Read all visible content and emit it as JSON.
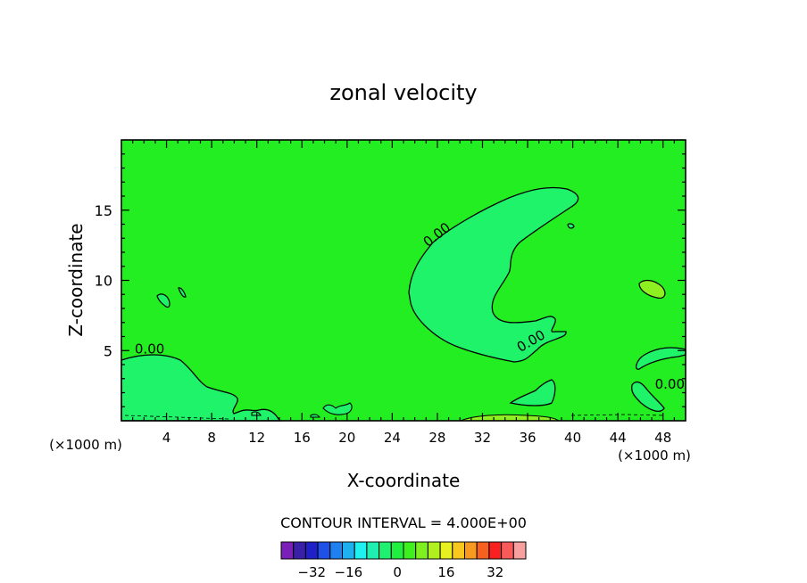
{
  "chart_data": {
    "type": "heatmap",
    "title": "zonal velocity",
    "xlabel": "X-coordinate",
    "ylabel": "Z-coordinate",
    "x_unit_left": "(×1000 m)",
    "x_unit_right": "(×1000 m)",
    "xlim": [
      0,
      50
    ],
    "ylim": [
      0,
      20
    ],
    "x_ticks": [
      4,
      8,
      12,
      16,
      20,
      24,
      28,
      32,
      36,
      40,
      44,
      48
    ],
    "y_ticks": [
      5,
      10,
      15
    ],
    "background_value": 0,
    "contour_labels": [
      {
        "text": "0.00",
        "x": 2.5,
        "z": 4.8
      },
      {
        "text": "0.00",
        "x": 28.2,
        "z": 13.0
      },
      {
        "text": "0.00",
        "x": 36.5,
        "z": 5.4
      },
      {
        "text": "0.00",
        "x": 48.6,
        "z": 2.3
      }
    ],
    "contour_interval_label": "CONTOUR INTERVAL = 4.000E+00",
    "colorbar": {
      "ticks": [
        "−32",
        "−16",
        "0",
        "16",
        "32"
      ],
      "colors": [
        "#7a1fb8",
        "#3a1fa8",
        "#2020c8",
        "#1f50e8",
        "#1f80f0",
        "#1fb0f0",
        "#1ff0f0",
        "#1ff0b0",
        "#1ff070",
        "#1ff040",
        "#3ff01f",
        "#7ff01f",
        "#b0f01f",
        "#e8f01f",
        "#f8c81f",
        "#f89a1f",
        "#f8601f",
        "#f82020",
        "#f85a5a",
        "#f8a0a0"
      ]
    },
    "colors": {
      "field_zero": "#22ee22",
      "field_negative": "#1ef36a",
      "field_positive": "#8ef020"
    }
  }
}
